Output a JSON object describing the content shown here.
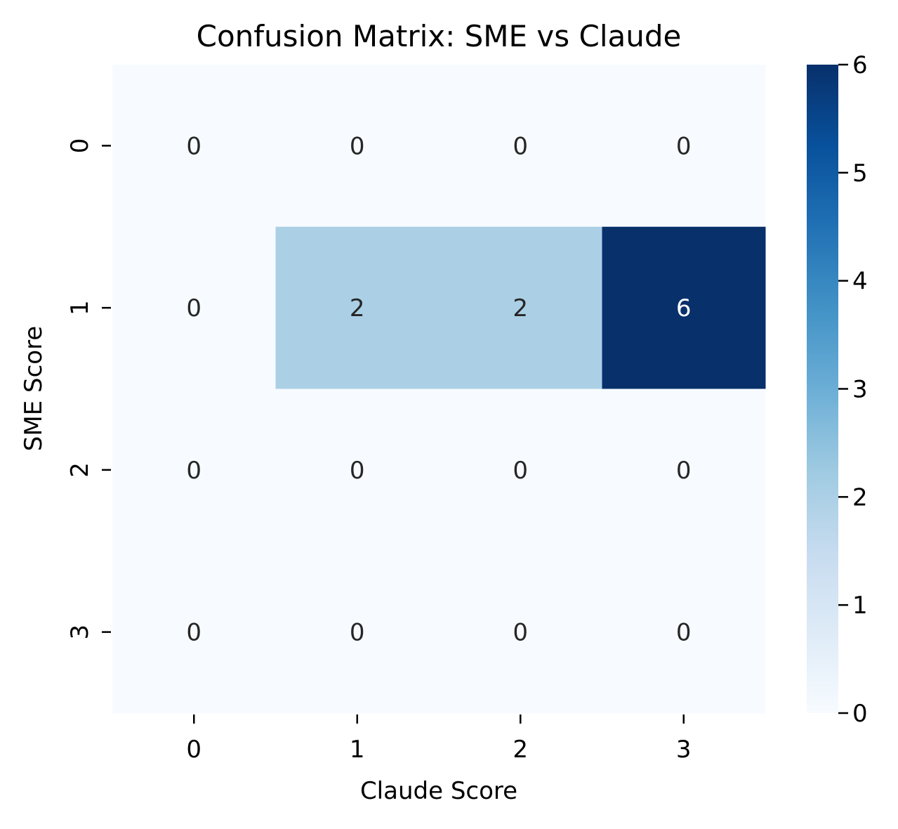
{
  "chart_data": {
    "type": "heatmap",
    "title": "Confusion Matrix: SME vs Claude",
    "xlabel": "Claude Score",
    "ylabel": "SME Score",
    "x_categories": [
      "0",
      "1",
      "2",
      "3"
    ],
    "y_categories": [
      "0",
      "1",
      "2",
      "3"
    ],
    "values": [
      [
        0,
        0,
        0,
        0
      ],
      [
        0,
        2,
        2,
        6
      ],
      [
        0,
        0,
        0,
        0
      ],
      [
        0,
        0,
        0,
        0
      ]
    ],
    "colorbar": {
      "min": 0,
      "max": 6,
      "ticks": [
        "0",
        "1",
        "2",
        "3",
        "4",
        "5",
        "6"
      ],
      "colormap": "Blues"
    },
    "annotations": true,
    "grid": false
  }
}
